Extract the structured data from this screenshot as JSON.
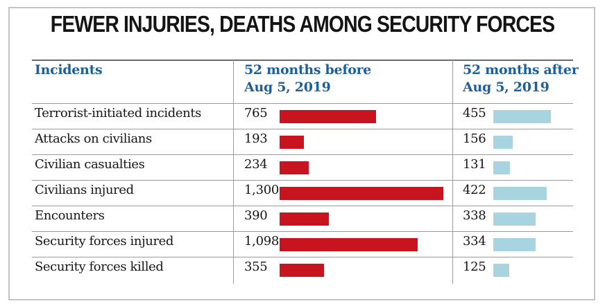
{
  "chart_data": {
    "type": "table",
    "title": "FEWER INJURIES, DEATHS AMONG SECURITY FORCES",
    "columns": [
      "Incidents",
      "52 months before Aug 5, 2019",
      "52 months after Aug 5, 2019"
    ],
    "header": {
      "incidents": "Incidents",
      "before_line1": "52 months before",
      "before_line2": "Aug 5, 2019",
      "after_line1": "52 months after",
      "after_line2": "Aug 5, 2019"
    },
    "categories": [
      "Terrorist-initiated incidents",
      "Attacks on civilians",
      "Civilian casualties",
      "Civilians injured",
      "Encounters",
      "Security forces injured",
      "Security forces killed"
    ],
    "series": [
      {
        "name": "52 months before Aug 5, 2019",
        "color": "#c8141f",
        "values": [
          765,
          193,
          234,
          1300,
          390,
          1098,
          355
        ]
      },
      {
        "name": "52 months after Aug 5, 2019",
        "color": "#a7d4df",
        "values": [
          455,
          156,
          131,
          422,
          338,
          334,
          125
        ]
      }
    ],
    "display_values": {
      "before": [
        "765",
        "193",
        "234",
        "1,300",
        "390",
        "1,098",
        "355"
      ],
      "after": [
        "455",
        "156",
        "131",
        "422",
        "338",
        "334",
        "125"
      ]
    },
    "bar_scale_max": 1300
  }
}
